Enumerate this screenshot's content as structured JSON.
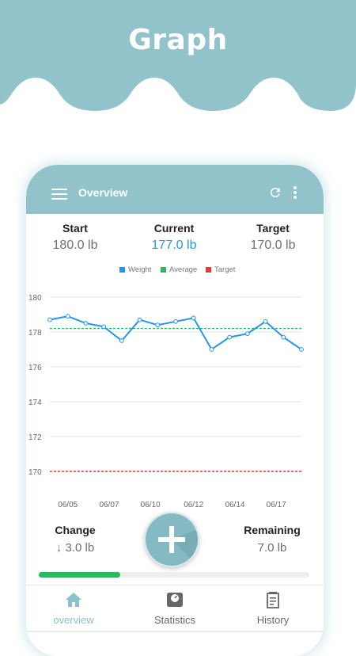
{
  "banner": {
    "title": "Graph"
  },
  "appbar": {
    "title": "Overview"
  },
  "stats": {
    "start": {
      "label": "Start",
      "value": "180.0 lb"
    },
    "current": {
      "label": "Current",
      "value": "177.0 lb"
    },
    "target": {
      "label": "Target",
      "value": "170.0 lb"
    }
  },
  "legend": [
    {
      "name": "Weight",
      "color": "#2196f3"
    },
    {
      "name": "Average",
      "color": "#2eb85c"
    },
    {
      "name": "Target",
      "color": "#e53935"
    }
  ],
  "chart_data": {
    "type": "line",
    "y_ticks": [
      "180",
      "178",
      "176",
      "174",
      "172",
      "170"
    ],
    "x_ticks": [
      "06/05",
      "06/07",
      "06/10",
      "06/12",
      "06/14",
      "06/17"
    ],
    "ylim": [
      169.2,
      180.7
    ],
    "series": [
      {
        "name": "Weight",
        "color": "#2196f3",
        "values": [
          178.7,
          178.9,
          178.5,
          178.3,
          177.5,
          178.7,
          178.4,
          178.6,
          178.8,
          177.0,
          177.7,
          177.9,
          178.6,
          177.7,
          177.0
        ]
      }
    ],
    "average": 178.2,
    "target": 170.0,
    "grid": true
  },
  "summary": {
    "change": {
      "label": "Change",
      "value": "↓ 3.0 lb"
    },
    "remaining": {
      "label": "Remaining",
      "value": "7.0 lb"
    }
  },
  "progress": {
    "fraction": 0.3
  },
  "tabs": [
    {
      "label": "overview",
      "icon": "home-icon",
      "active": true
    },
    {
      "label": "Statistics",
      "icon": "scale-icon",
      "active": false
    },
    {
      "label": "History",
      "icon": "notepad-icon",
      "active": false
    }
  ],
  "colors": {
    "accent": "#92c3cb",
    "weight": "#2196f3",
    "average": "#2eb85c",
    "target": "#e53935",
    "progress": "#2eb85c"
  }
}
